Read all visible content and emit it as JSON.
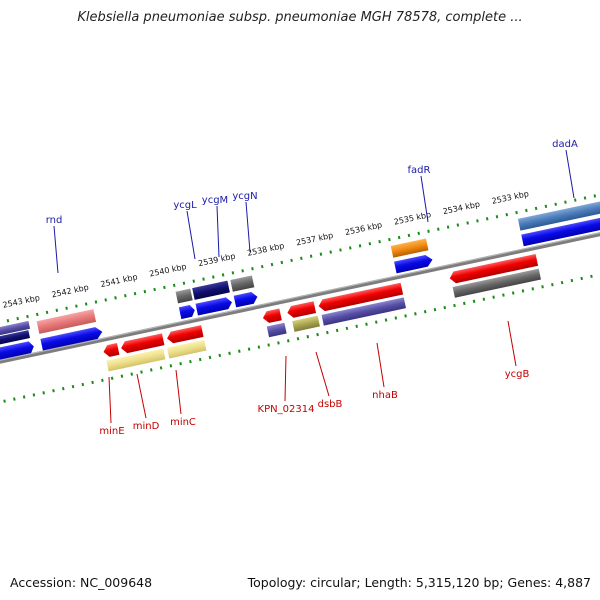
{
  "title": "Klebsiella pneumoniae subsp. pneumoniae MGH 78578, complete ...",
  "footer": {
    "accession": "Accession: NC_009648",
    "summary": "Topology: circular; Length: 5,315,120 bp; Genes: 4,887"
  },
  "ticks": [
    "2543 kbp",
    "2542 kbp",
    "2541 kbp",
    "2540 kbp",
    "2539 kbp",
    "2538 kbp",
    "2537 kbp",
    "2536 kbp",
    "2535 kbp",
    "2534 kbp",
    "2533 kbp"
  ],
  "genes_top": [
    "rnd",
    "ycgL",
    "ycgM",
    "ycgN",
    "fadR",
    "dadA"
  ],
  "genes_bottom": [
    "minE",
    "minD",
    "minC",
    "KPN_02314",
    "dsbB",
    "nhaB",
    "ycgB"
  ],
  "colors": {
    "backbone": "#7a7a7a",
    "tick": "#1a8c1a",
    "top_label": "#1a1aa8",
    "bottom_label": "#c40000"
  }
}
